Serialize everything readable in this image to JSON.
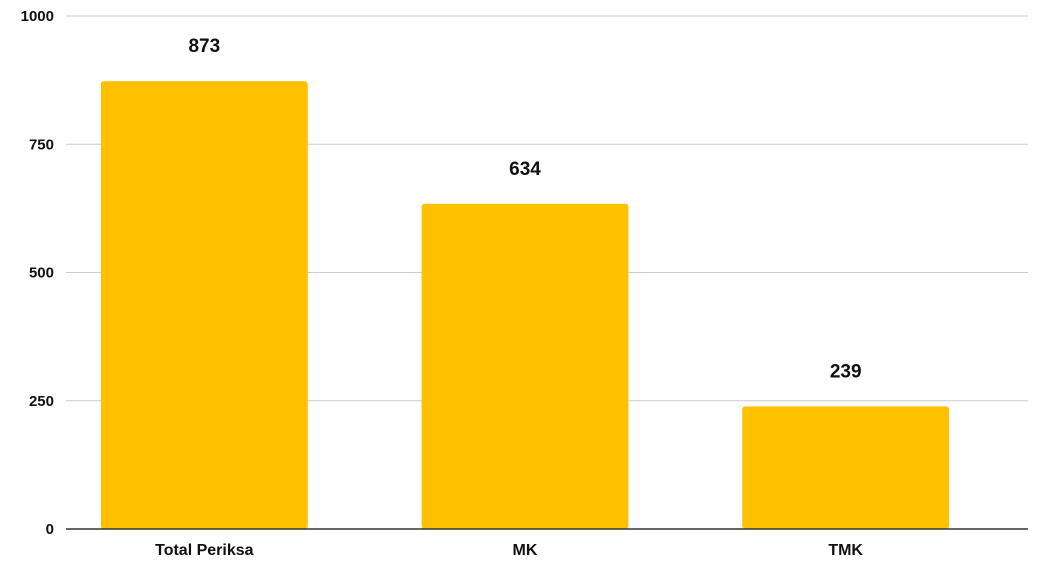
{
  "chart_data": {
    "type": "bar",
    "categories": [
      "Total Periksa",
      "MK",
      "TMK"
    ],
    "values": [
      873,
      634,
      239
    ],
    "data_labels": [
      "873",
      "634",
      "239"
    ],
    "title": "",
    "xlabel": "",
    "ylabel": "",
    "ylim": [
      0,
      1000
    ],
    "yticks": [
      0,
      250,
      500,
      750,
      1000
    ],
    "ytick_labels": [
      "0",
      "250",
      "500",
      "750",
      "1000"
    ],
    "grid": true,
    "legend": "none",
    "colors": {
      "bar": "#FFC000",
      "grid": "#cccccc",
      "axis": "#333333",
      "text": "#111111"
    }
  }
}
